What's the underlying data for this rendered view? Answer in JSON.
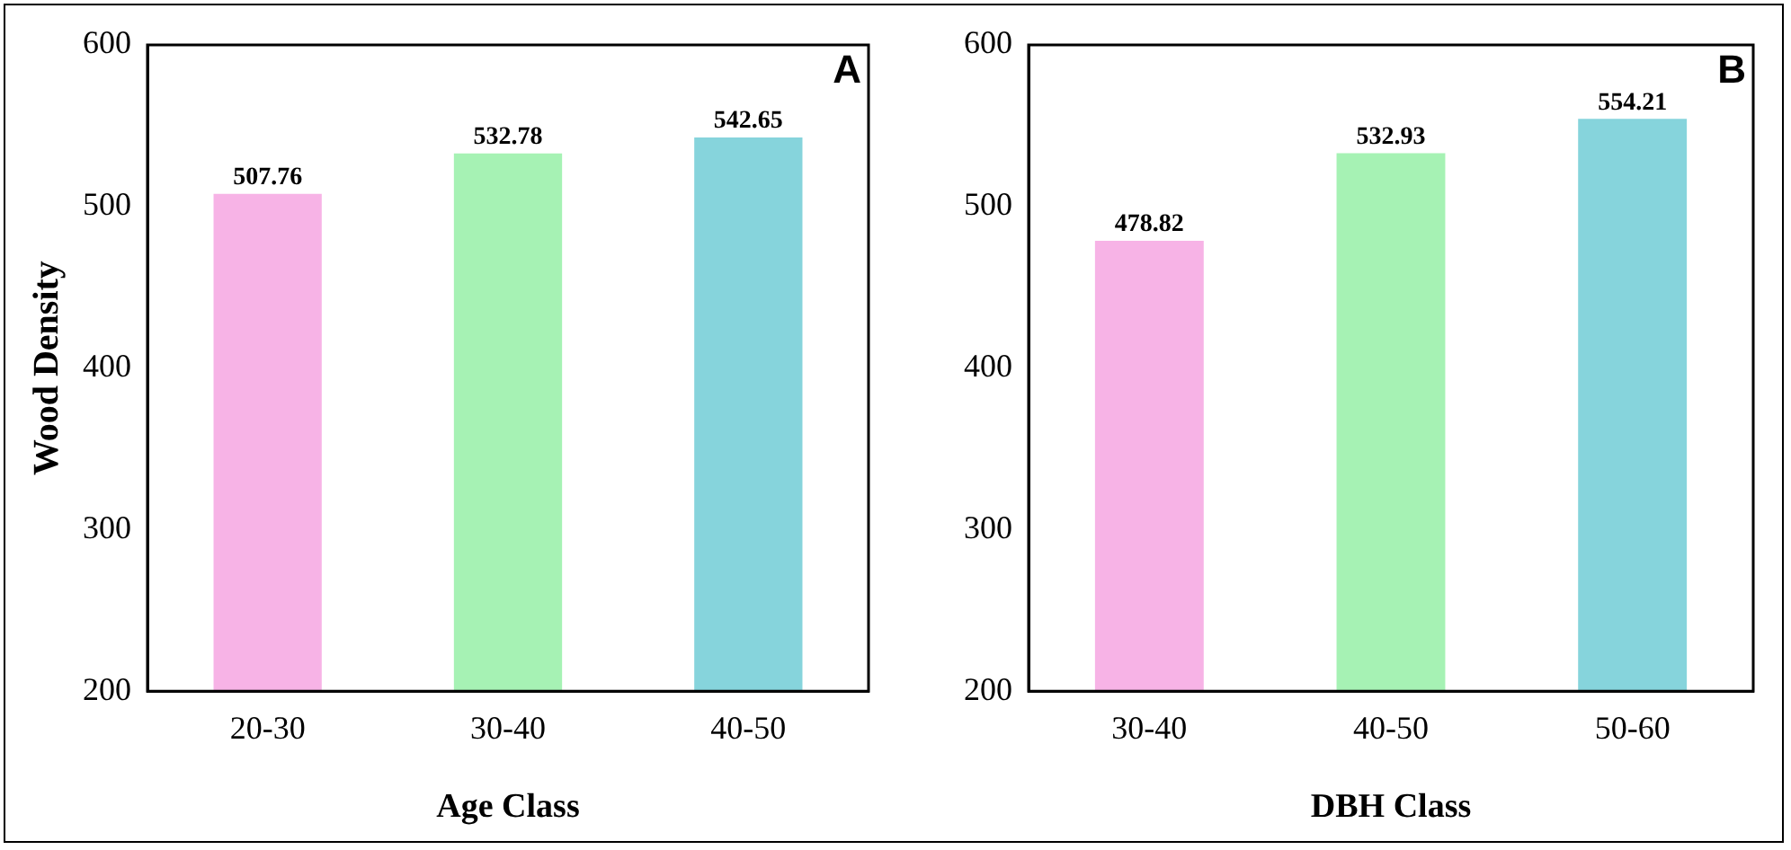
{
  "chart_data": [
    {
      "type": "bar",
      "xlabel": "Age Class",
      "ylabel": "Wood Density",
      "categories": [
        "20-30",
        "30-40",
        "40-50"
      ],
      "values": [
        507.76,
        532.78,
        542.65
      ],
      "colors": [
        "#f7b3e6",
        "#a6f2b4",
        "#86d4dc"
      ],
      "ylim": [
        200,
        600
      ],
      "yticks": [
        200,
        300,
        400,
        500,
        600
      ],
      "data_labels": true,
      "grid": false,
      "legend": false,
      "annotations": [
        "A"
      ]
    },
    {
      "type": "bar",
      "xlabel": "DBH Class",
      "categories": [
        "30-40",
        "40-50",
        "50-60"
      ],
      "values": [
        478.82,
        532.93,
        554.21
      ],
      "colors": [
        "#f7b3e6",
        "#a6f2b4",
        "#86d4dc"
      ],
      "ylim": [
        200,
        600
      ],
      "yticks": [
        200,
        300,
        400,
        500,
        600
      ],
      "data_labels": true,
      "grid": false,
      "legend": false,
      "annotations": [
        "B"
      ]
    }
  ]
}
